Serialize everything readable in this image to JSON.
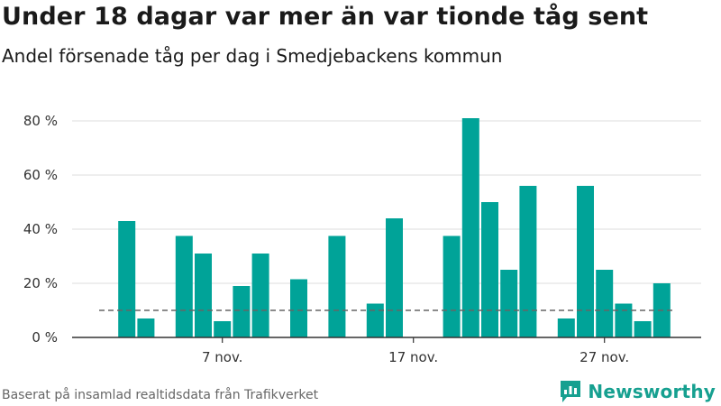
{
  "title": "Under 18 dagar var mer än var tionde tåg sent",
  "subtitle": "Andel försenade tåg per dag i Smedjebackens kommun",
  "source": "Baserat på insamlad realtidsdata från Trafikverket",
  "brand": "Newsworthy",
  "colors": {
    "bar": "#00a398",
    "grid": "#dddddd",
    "axis": "#333333",
    "reference_line": "#666666",
    "brand": "#16a090"
  },
  "chart_data": {
    "type": "bar",
    "title": "Under 18 dagar var mer än var tionde tåg sent",
    "subtitle": "Andel försenade tåg per dag i Smedjebackens kommun",
    "xlabel": "",
    "ylabel": "",
    "ylim": [
      0,
      85
    ],
    "yticks": [
      0,
      20,
      40,
      60,
      80
    ],
    "ytick_labels": [
      "0 %",
      "20 %",
      "40 %",
      "60 %",
      "80 %"
    ],
    "grid": true,
    "legend": "none",
    "reference_line": 10,
    "x_start_day": 1,
    "x_end_day": 30,
    "xticks": [
      {
        "day": 7,
        "label": "7 nov."
      },
      {
        "day": 17,
        "label": "17 nov."
      },
      {
        "day": 27,
        "label": "27 nov."
      }
    ],
    "days": [
      2,
      3,
      5,
      6,
      7,
      8,
      9,
      11,
      13,
      15,
      16,
      19,
      20,
      21,
      22,
      23,
      25,
      26,
      27,
      28,
      29,
      30
    ],
    "values": [
      43,
      7,
      37.5,
      31,
      6,
      19,
      31,
      21.5,
      37.5,
      12.5,
      44,
      37.5,
      81,
      50,
      25,
      56,
      7,
      56,
      25,
      12.5,
      6,
      20
    ]
  }
}
